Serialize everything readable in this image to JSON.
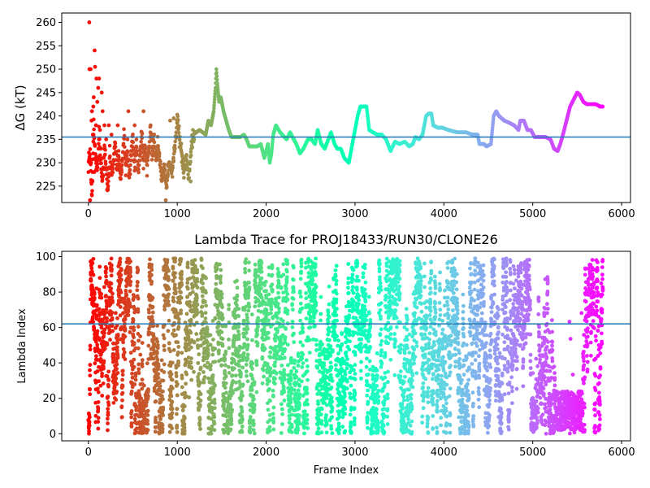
{
  "chart_data": [
    {
      "type": "scatter",
      "title": "",
      "xlabel": "",
      "ylabel": "ΔG (kT)",
      "xlim": [
        -300,
        6100
      ],
      "ylim": [
        221.5,
        262
      ],
      "xticks": [
        0,
        1000,
        2000,
        3000,
        4000,
        5000,
        6000
      ],
      "yticks": [
        225,
        230,
        235,
        240,
        245,
        250,
        255,
        260
      ],
      "hline": 235.5,
      "hline_color": "#1f77b4",
      "colormap": "rainbow",
      "x_max_frame": 5800,
      "trace": [
        [
          0,
          230
        ],
        [
          20,
          232
        ],
        [
          40,
          222
        ],
        [
          60,
          238
        ],
        [
          80,
          231
        ],
        [
          100,
          228
        ],
        [
          120,
          236
        ],
        [
          140,
          229
        ],
        [
          160,
          226
        ],
        [
          180,
          234
        ],
        [
          200,
          228
        ],
        [
          220,
          224
        ],
        [
          240,
          232
        ],
        [
          260,
          227
        ],
        [
          280,
          230
        ],
        [
          300,
          235
        ],
        [
          320,
          228
        ],
        [
          340,
          232
        ],
        [
          360,
          226
        ],
        [
          380,
          230
        ],
        [
          400,
          236
        ],
        [
          420,
          229
        ],
        [
          440,
          233
        ],
        [
          460,
          227
        ],
        [
          480,
          231
        ],
        [
          500,
          235
        ],
        [
          520,
          230
        ],
        [
          540,
          234
        ],
        [
          560,
          228
        ],
        [
          580,
          232
        ],
        [
          600,
          236
        ],
        [
          620,
          230
        ],
        [
          640,
          234
        ],
        [
          660,
          229
        ],
        [
          680,
          233
        ],
        [
          700,
          237
        ],
        [
          720,
          231
        ],
        [
          740,
          235
        ],
        [
          760,
          230
        ],
        [
          780,
          234
        ],
        [
          800,
          231
        ],
        [
          830,
          226
        ],
        [
          860,
          229
        ],
        [
          880,
          224
        ],
        [
          900,
          230
        ],
        [
          940,
          228
        ],
        [
          980,
          235
        ],
        [
          1000,
          239
        ],
        [
          1020,
          236
        ],
        [
          1040,
          233
        ],
        [
          1060,
          231
        ],
        [
          1080,
          228
        ],
        [
          1100,
          232
        ],
        [
          1130,
          226
        ],
        [
          1150,
          232
        ],
        [
          1180,
          236
        ],
        [
          1250,
          237
        ],
        [
          1320,
          236
        ],
        [
          1350,
          239
        ],
        [
          1380,
          238
        ],
        [
          1410,
          241
        ],
        [
          1430,
          246
        ],
        [
          1440,
          250
        ],
        [
          1450,
          247
        ],
        [
          1470,
          243
        ],
        [
          1490,
          244
        ],
        [
          1520,
          241
        ],
        [
          1550,
          239
        ],
        [
          1580,
          237
        ],
        [
          1610,
          235.5
        ],
        [
          1660,
          235.5
        ],
        [
          1710,
          235.5
        ],
        [
          1750,
          236
        ],
        [
          1780,
          235
        ],
        [
          1810,
          233.5
        ],
        [
          1850,
          233.5
        ],
        [
          1900,
          233.5
        ],
        [
          1940,
          234
        ],
        [
          1980,
          231
        ],
        [
          2020,
          234
        ],
        [
          2040,
          230
        ],
        [
          2060,
          232
        ],
        [
          2080,
          236
        ],
        [
          2110,
          238
        ],
        [
          2140,
          237
        ],
        [
          2180,
          236
        ],
        [
          2230,
          235
        ],
        [
          2270,
          236.5
        ],
        [
          2310,
          235
        ],
        [
          2340,
          234
        ],
        [
          2380,
          232
        ],
        [
          2420,
          233
        ],
        [
          2470,
          235
        ],
        [
          2510,
          235
        ],
        [
          2550,
          234
        ],
        [
          2580,
          237
        ],
        [
          2620,
          234
        ],
        [
          2660,
          233
        ],
        [
          2700,
          235
        ],
        [
          2730,
          236.5
        ],
        [
          2770,
          234
        ],
        [
          2800,
          233
        ],
        [
          2840,
          233
        ],
        [
          2880,
          231
        ],
        [
          2930,
          230
        ],
        [
          2980,
          235
        ],
        [
          3000,
          237
        ],
        [
          3030,
          240
        ],
        [
          3060,
          242
        ],
        [
          3100,
          242
        ],
        [
          3130,
          242
        ],
        [
          3160,
          237
        ],
        [
          3200,
          236.5
        ],
        [
          3250,
          236
        ],
        [
          3300,
          236
        ],
        [
          3350,
          235
        ],
        [
          3400,
          232.5
        ],
        [
          3450,
          234.5
        ],
        [
          3500,
          234
        ],
        [
          3560,
          234.5
        ],
        [
          3610,
          233.5
        ],
        [
          3650,
          234
        ],
        [
          3680,
          235.5
        ],
        [
          3720,
          235
        ],
        [
          3760,
          236
        ],
        [
          3800,
          240
        ],
        [
          3830,
          240.5
        ],
        [
          3860,
          240.5
        ],
        [
          3880,
          238
        ],
        [
          3930,
          237.5
        ],
        [
          3980,
          237.5
        ],
        [
          4050,
          237
        ],
        [
          4150,
          236.5
        ],
        [
          4250,
          236.5
        ],
        [
          4320,
          236
        ],
        [
          4380,
          236
        ],
        [
          4400,
          234
        ],
        [
          4450,
          234
        ],
        [
          4480,
          233.5
        ],
        [
          4530,
          234
        ],
        [
          4560,
          240
        ],
        [
          4590,
          241
        ],
        [
          4620,
          240
        ],
        [
          4680,
          239
        ],
        [
          4740,
          238.5
        ],
        [
          4790,
          238
        ],
        [
          4840,
          237
        ],
        [
          4860,
          239
        ],
        [
          4900,
          239
        ],
        [
          4940,
          237
        ],
        [
          4980,
          237
        ],
        [
          5020,
          235.5
        ],
        [
          5080,
          235.5
        ],
        [
          5140,
          235.5
        ],
        [
          5200,
          235
        ],
        [
          5240,
          233
        ],
        [
          5280,
          232.5
        ],
        [
          5310,
          234
        ],
        [
          5340,
          236
        ],
        [
          5380,
          239
        ],
        [
          5420,
          242
        ],
        [
          5460,
          243.5
        ],
        [
          5500,
          245
        ],
        [
          5530,
          244.5
        ],
        [
          5570,
          243
        ],
        [
          5610,
          242.5
        ],
        [
          5660,
          242.5
        ],
        [
          5710,
          242.5
        ],
        [
          5760,
          242
        ],
        [
          5790,
          242
        ]
      ],
      "early_scatter": [
        [
          10,
          260
        ],
        [
          12,
          250
        ],
        [
          15,
          230
        ],
        [
          18,
          222
        ],
        [
          25,
          250
        ],
        [
          30,
          230
        ],
        [
          35,
          239
        ],
        [
          40,
          241
        ],
        [
          45,
          226
        ],
        [
          50,
          236
        ],
        [
          55,
          242
        ],
        [
          60,
          244
        ],
        [
          65,
          228
        ],
        [
          70,
          254
        ],
        [
          75,
          250.5
        ],
        [
          80,
          231
        ],
        [
          85,
          238
        ],
        [
          90,
          248
        ],
        [
          100,
          243
        ],
        [
          110,
          246
        ],
        [
          120,
          248
        ],
        [
          130,
          237
        ],
        [
          140,
          233
        ],
        [
          150,
          245
        ],
        [
          160,
          241
        ],
        [
          180,
          238
        ],
        [
          200,
          235
        ],
        [
          230,
          238
        ],
        [
          260,
          236
        ],
        [
          330,
          238
        ],
        [
          450,
          241
        ],
        [
          520,
          238
        ],
        [
          620,
          241
        ],
        [
          700,
          238
        ],
        [
          870,
          222
        ],
        [
          920,
          239
        ],
        [
          960,
          239.5
        ],
        [
          1150,
          226
        ]
      ]
    },
    {
      "type": "scatter",
      "title": "Lambda Trace for PROJ18433/RUN30/CLONE26",
      "xlabel": "Frame Index",
      "ylabel": "Lambda Index",
      "xlim": [
        -300,
        6100
      ],
      "ylim": [
        -4,
        103
      ],
      "xticks": [
        0,
        1000,
        2000,
        3000,
        4000,
        5000,
        6000
      ],
      "yticks": [
        0,
        20,
        40,
        60,
        80,
        100
      ],
      "hline": 62,
      "hline_color": "#1f77b4",
      "colormap": "rainbow",
      "n_points": 6000,
      "seed": 18433
    }
  ]
}
